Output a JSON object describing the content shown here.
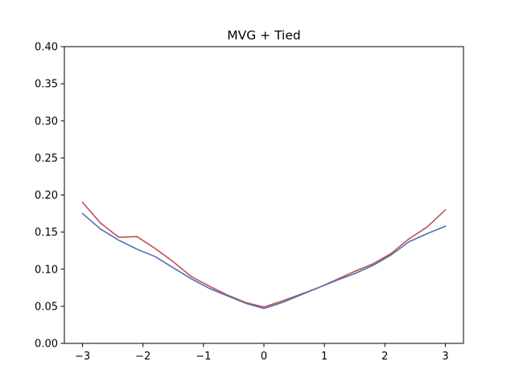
{
  "chart_data": {
    "type": "line",
    "title": "MVG + Tied",
    "xlabel": "",
    "ylabel": "",
    "xlim": [
      -3.3,
      3.3
    ],
    "ylim": [
      0.0,
      0.4
    ],
    "grid": false,
    "x_ticks": [
      -3,
      -2,
      -1,
      0,
      1,
      2,
      3
    ],
    "x_tick_labels": [
      "−3",
      "−2",
      "−1",
      "0",
      "1",
      "2",
      "3"
    ],
    "y_ticks": [
      0.0,
      0.05,
      0.1,
      0.15,
      0.2,
      0.25,
      0.3,
      0.35,
      0.4
    ],
    "y_tick_labels": [
      "0.00",
      "0.05",
      "0.10",
      "0.15",
      "0.20",
      "0.25",
      "0.30",
      "0.35",
      "0.40"
    ],
    "x": [
      -3.0,
      -2.7,
      -2.4,
      -2.1,
      -1.8,
      -1.5,
      -1.2,
      -0.9,
      -0.6,
      -0.3,
      0.0,
      0.3,
      0.6,
      0.9,
      1.2,
      1.5,
      1.8,
      2.1,
      2.4,
      2.7,
      3.0
    ],
    "series": [
      {
        "color": "#c44e52",
        "values": [
          0.19,
          0.162,
          0.143,
          0.144,
          0.128,
          0.11,
          0.09,
          0.077,
          0.065,
          0.055,
          0.049,
          0.057,
          0.066,
          0.075,
          0.086,
          0.097,
          0.107,
          0.121,
          0.141,
          0.157,
          0.18
        ]
      },
      {
        "color": "#4c72b0",
        "values": [
          0.175,
          0.154,
          0.139,
          0.127,
          0.117,
          0.102,
          0.087,
          0.074,
          0.064,
          0.054,
          0.047,
          0.055,
          0.065,
          0.075,
          0.085,
          0.094,
          0.105,
          0.119,
          0.137,
          0.148,
          0.158
        ]
      }
    ]
  }
}
